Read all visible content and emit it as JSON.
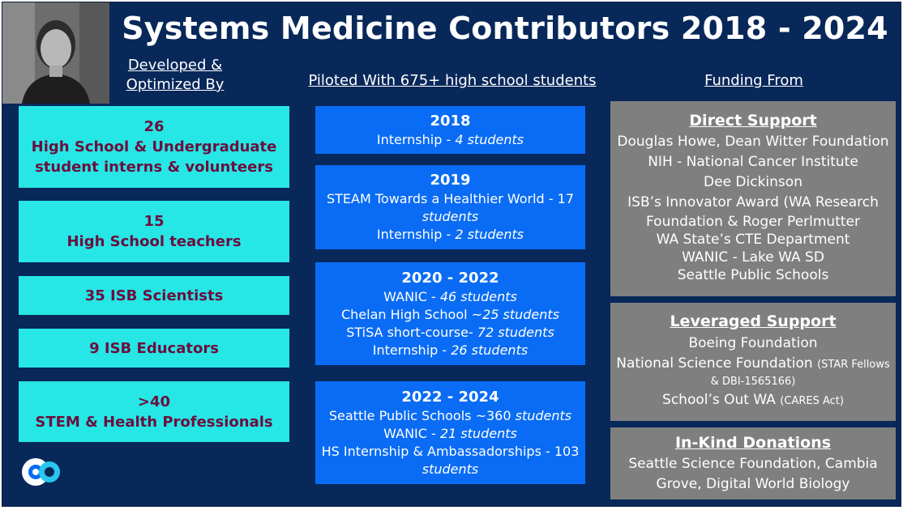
{
  "title": "Systems Medicine Contributors 2018 - 2024",
  "headers": {
    "developed": [
      "Developed &",
      "Optimized By"
    ],
    "piloted": "Piloted With 675+ high school students",
    "funding": "Funding From"
  },
  "contributors": [
    {
      "lines": [
        "26",
        "High School & Undergraduate",
        "student interns & volunteers"
      ]
    },
    {
      "lines": [
        "15",
        "High School teachers"
      ]
    },
    {
      "lines": [
        "35 ISB Scientists"
      ]
    },
    {
      "lines": [
        "9 ISB Educators"
      ]
    },
    {
      "lines": [
        ">40",
        "STEM & Health Professionals"
      ]
    }
  ],
  "pilots": [
    {
      "year": "2018",
      "items": [
        [
          "Internship - ",
          "4 students"
        ]
      ]
    },
    {
      "year": "2019",
      "items": [
        [
          "STEAM Towards a Healthier World - 17",
          "students"
        ],
        [
          "Internship - ",
          "2 students"
        ]
      ]
    },
    {
      "year": "2020 - 2022",
      "items": [
        [
          "WANIC - ",
          "46 students"
        ],
        [
          "Chelan High School ~",
          "25 students"
        ],
        [
          "STiSA short-course- ",
          "72 students"
        ],
        [
          "Internship - ",
          "26 students"
        ]
      ]
    },
    {
      "year": "2022 - 2024",
      "items": [
        [
          "Seattle Public Schools ~360 ",
          "students"
        ],
        [
          "WANIC - ",
          "21 students"
        ],
        [
          "HS Internship & Ambassadorships - 103",
          "students"
        ]
      ]
    }
  ],
  "funding": {
    "direct": {
      "heading": "Direct Support",
      "items": [
        "Douglas Howe, Dean Witter Foundation",
        "NIH - National Cancer Institute",
        "Dee Dickinson",
        "ISB’s Innovator Award (WA Research",
        "Foundation & Roger Perlmutter",
        "WA State’s CTE Department",
        "WANIC - Lake WA SD",
        "Seattle Public Schools"
      ]
    },
    "leveraged": {
      "heading": "Leveraged Support",
      "item1": "Boeing Foundation",
      "item2_main": "National Science Foundation",
      "item2_small": "(STAR Fellows",
      "item2_small2": "& DBI-1565166)",
      "item3_main": "School’s Out WA",
      "item3_small": "(CARES Act)"
    },
    "inkind": {
      "heading": "In-Kind Donations",
      "items": [
        "Seattle Science Foundation, Cambia",
        "Grove, Digital World Biology"
      ]
    }
  },
  "colors": {
    "background": "#08285a",
    "cyan": "#27e6e6",
    "maroon": "#6a0f3e",
    "blue": "#0a6cf4",
    "gray": "#7f7f7f"
  },
  "icons": [
    "photo-portrait",
    "isb-logo-icon"
  ]
}
